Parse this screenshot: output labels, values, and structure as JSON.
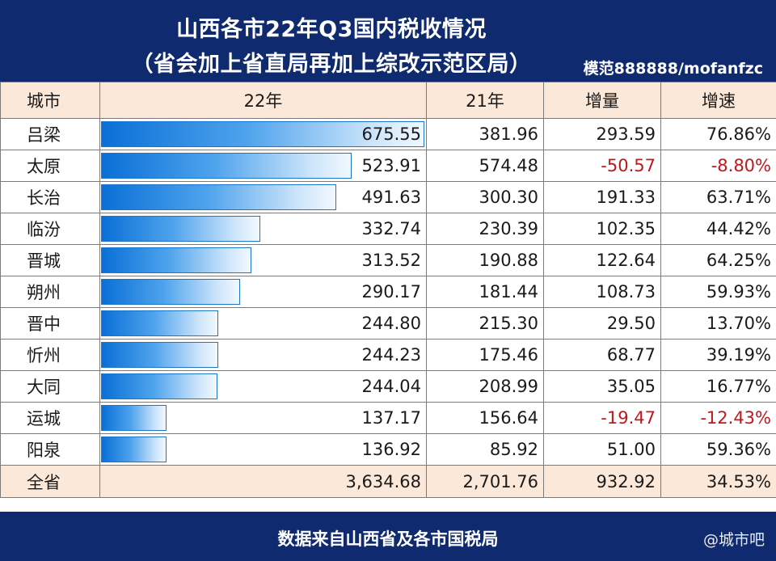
{
  "header": {
    "title_line1": "山西各市22年Q3国内税收情况",
    "title_line2": "（省会加上省直局再加上综改示范区局）",
    "credit": "模范888888/mofanfzc"
  },
  "table": {
    "columns": [
      "城市",
      "22年",
      "21年",
      "增量",
      "增速"
    ],
    "rows": [
      {
        "city": "吕梁",
        "y22": "675.55",
        "y21": "381.96",
        "delta": "293.59",
        "growth": "76.86%",
        "neg": false
      },
      {
        "city": "太原",
        "y22": "523.91",
        "y21": "574.48",
        "delta": "-50.57",
        "growth": "-8.80%",
        "neg": true
      },
      {
        "city": "长治",
        "y22": "491.63",
        "y21": "300.30",
        "delta": "191.33",
        "growth": "63.71%",
        "neg": false
      },
      {
        "city": "临汾",
        "y22": "332.74",
        "y21": "230.39",
        "delta": "102.35",
        "growth": "44.42%",
        "neg": false
      },
      {
        "city": "晋城",
        "y22": "313.52",
        "y21": "190.88",
        "delta": "122.64",
        "growth": "64.25%",
        "neg": false
      },
      {
        "city": "朔州",
        "y22": "290.17",
        "y21": "181.44",
        "delta": "108.73",
        "growth": "59.93%",
        "neg": false
      },
      {
        "city": "晋中",
        "y22": "244.80",
        "y21": "215.30",
        "delta": "29.50",
        "growth": "13.70%",
        "neg": false
      },
      {
        "city": "忻州",
        "y22": "244.23",
        "y21": "175.46",
        "delta": "68.77",
        "growth": "39.19%",
        "neg": false
      },
      {
        "city": "大同",
        "y22": "244.04",
        "y21": "208.99",
        "delta": "35.05",
        "growth": "16.77%",
        "neg": false
      },
      {
        "city": "运城",
        "y22": "137.17",
        "y21": "156.64",
        "delta": "-19.47",
        "growth": "-12.43%",
        "neg": true
      },
      {
        "city": "阳泉",
        "y22": "136.92",
        "y21": "85.92",
        "delta": "51.00",
        "growth": "59.36%",
        "neg": false
      }
    ],
    "total": {
      "city": "全省",
      "y22": "3,634.68",
      "y21": "2,701.76",
      "delta": "932.92",
      "growth": "34.53%"
    }
  },
  "footer": {
    "source": "数据来自山西省及各市国税局",
    "watermark": "@城市吧"
  },
  "chart_data": {
    "type": "bar",
    "orientation": "horizontal",
    "categories": [
      "吕梁",
      "太原",
      "长治",
      "临汾",
      "晋城",
      "朔州",
      "晋中",
      "忻州",
      "大同",
      "运城",
      "阳泉"
    ],
    "values": [
      675.55,
      523.91,
      491.63,
      332.74,
      313.52,
      290.17,
      244.8,
      244.23,
      244.04,
      137.17,
      136.92
    ],
    "max": 675.55
  }
}
